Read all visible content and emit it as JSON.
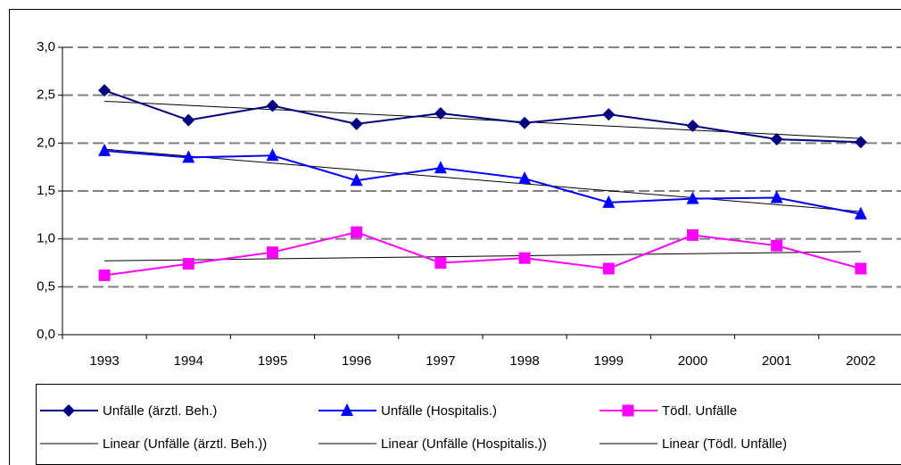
{
  "chart_data": {
    "type": "line",
    "categories": [
      "1993",
      "1994",
      "1995",
      "1996",
      "1997",
      "1998",
      "1999",
      "2000",
      "2001",
      "2002"
    ],
    "series": [
      {
        "name": "Unfälle (ärztl. Beh.)",
        "color": "#000080",
        "marker": "diamond",
        "values": [
          2.55,
          2.24,
          2.39,
          2.2,
          2.31,
          2.21,
          2.3,
          2.18,
          2.04,
          2.01
        ],
        "trendline": {
          "name": "Linear (Unfälle (ärztl. Beh.))",
          "color": "#000000"
        }
      },
      {
        "name": "Unfälle (Hospitalis.)",
        "color": "#0000ff",
        "marker": "triangle",
        "values": [
          1.92,
          1.85,
          1.87,
          1.61,
          1.74,
          1.63,
          1.38,
          1.42,
          1.43,
          1.26
        ],
        "trendline": {
          "name": "Linear (Unfälle (Hospitalis.))",
          "color": "#000000"
        }
      },
      {
        "name": "Tödl. Unfälle",
        "color": "#ff00ff",
        "marker": "square",
        "values": [
          0.62,
          0.74,
          0.86,
          1.07,
          0.75,
          0.8,
          0.69,
          1.04,
          0.93,
          0.69
        ],
        "trendline": {
          "name": "Linear (Tödl. Unfälle)",
          "color": "#000000"
        }
      }
    ],
    "ylim": [
      0,
      3
    ],
    "yticks": [
      {
        "value": 0,
        "label": "0,0"
      },
      {
        "value": 0.5,
        "label": "0,5"
      },
      {
        "value": 1,
        "label": "1,0"
      },
      {
        "value": 1.5,
        "label": "1,5"
      },
      {
        "value": 2,
        "label": "2,0"
      },
      {
        "value": 2.5,
        "label": "2,5"
      },
      {
        "value": 3,
        "label": "3,0"
      }
    ],
    "grid": true,
    "legend": "bottom"
  }
}
